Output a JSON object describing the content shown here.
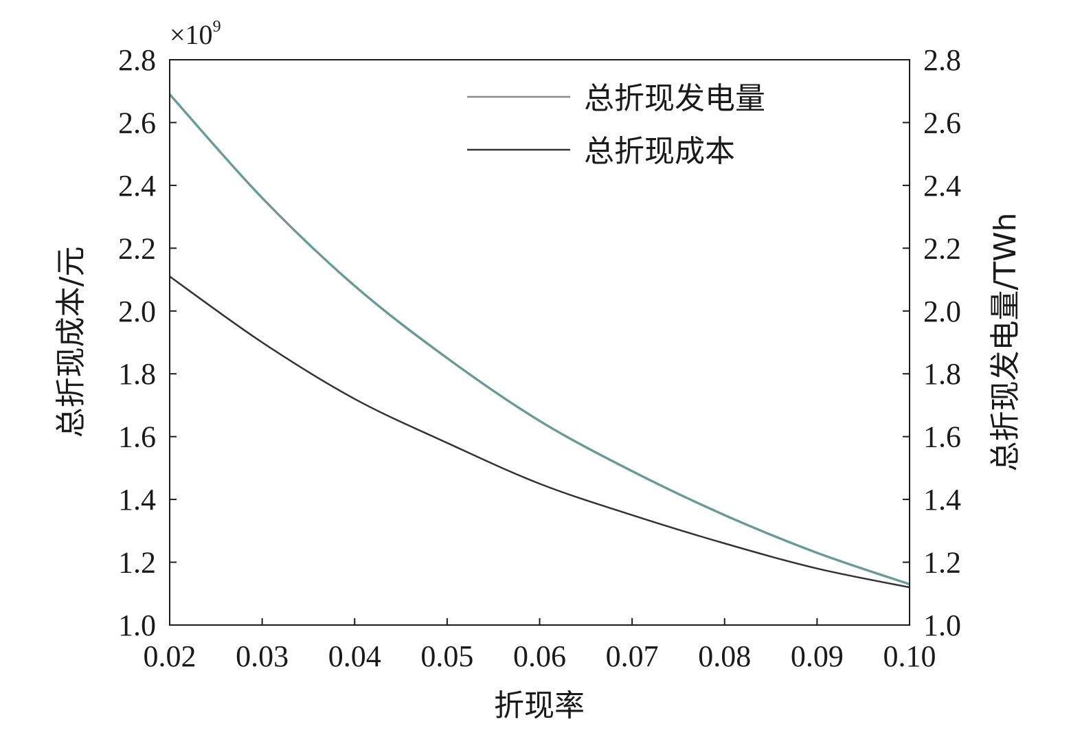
{
  "chart_data": {
    "type": "line",
    "title": "",
    "xlabel": "折现率",
    "ylabel_left": "总折现成本/元",
    "ylabel_right": "总折现发电量/TWh",
    "left_axis_multiplier": "×10",
    "left_axis_multiplier_exp": "9",
    "xlim": [
      0.02,
      0.1
    ],
    "ylim_left": [
      1.0,
      2.8
    ],
    "ylim_right": [
      1.0,
      2.8
    ],
    "x_ticks": [
      "0.02",
      "0.03",
      "0.04",
      "0.05",
      "0.06",
      "0.07",
      "0.08",
      "0.09",
      "0.10"
    ],
    "y_ticks_left": [
      "1.0",
      "1.2",
      "1.4",
      "1.6",
      "1.8",
      "2.0",
      "2.2",
      "2.4",
      "2.6",
      "2.8"
    ],
    "y_ticks_right": [
      "1.0",
      "1.2",
      "1.4",
      "1.6",
      "1.8",
      "2.0",
      "2.2",
      "2.4",
      "2.6",
      "2.8"
    ],
    "grid": false,
    "legend_position": "top-right",
    "x": [
      0.02,
      0.03,
      0.04,
      0.05,
      0.06,
      0.07,
      0.08,
      0.09,
      0.1
    ],
    "series": [
      {
        "name": "总折现发电量",
        "axis": "right",
        "color": "#8a8a8a",
        "highlight_color": "#3fb8a8",
        "values": [
          2.69,
          2.36,
          2.08,
          1.85,
          1.65,
          1.49,
          1.35,
          1.23,
          1.13
        ]
      },
      {
        "name": "总折现成本",
        "axis": "left",
        "color": "#333333",
        "values": [
          2.11,
          1.9,
          1.72,
          1.58,
          1.45,
          1.35,
          1.26,
          1.18,
          1.12
        ]
      }
    ]
  }
}
